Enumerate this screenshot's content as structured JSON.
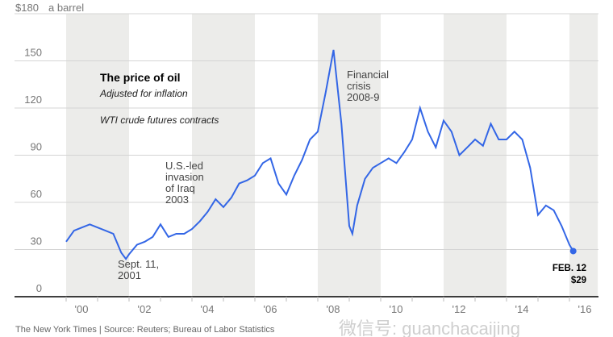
{
  "chart_data": {
    "type": "line",
    "title": "The price of oil",
    "subtitle": "Adjusted for inflation",
    "note": "WTI crude futures contracts",
    "ylabel_suffix": "a barrel",
    "ylim": [
      0,
      180
    ],
    "yticks": [
      {
        "v": 0,
        "label": "0"
      },
      {
        "v": 30,
        "label": "30"
      },
      {
        "v": 60,
        "label": "60"
      },
      {
        "v": 90,
        "label": "90"
      },
      {
        "v": 120,
        "label": "120"
      },
      {
        "v": 150,
        "label": "150"
      },
      {
        "v": 180,
        "label": "$180"
      }
    ],
    "xlim": [
      2000,
      2016.9
    ],
    "xticks": [
      {
        "v": 2000,
        "label": "'00"
      },
      {
        "v": 2002,
        "label": "'02"
      },
      {
        "v": 2004,
        "label": "'04"
      },
      {
        "v": 2006,
        "label": "'06"
      },
      {
        "v": 2008,
        "label": "'08"
      },
      {
        "v": 2010,
        "label": "'10"
      },
      {
        "v": 2012,
        "label": "'12"
      },
      {
        "v": 2014,
        "label": "'14"
      },
      {
        "v": 2016,
        "label": "'16"
      }
    ],
    "series": [
      {
        "name": "WTI crude (inflation adjusted)",
        "color": "#3366e6",
        "x": [
          2000.0,
          2000.25,
          2000.5,
          2000.75,
          2001.0,
          2001.25,
          2001.5,
          2001.75,
          2001.9,
          2002.0,
          2002.25,
          2002.5,
          2002.75,
          2003.0,
          2003.25,
          2003.5,
          2003.75,
          2004.0,
          2004.25,
          2004.5,
          2004.75,
          2005.0,
          2005.25,
          2005.5,
          2005.75,
          2006.0,
          2006.25,
          2006.5,
          2006.75,
          2007.0,
          2007.25,
          2007.5,
          2007.75,
          2008.0,
          2008.25,
          2008.5,
          2008.75,
          2009.0,
          2009.1,
          2009.25,
          2009.5,
          2009.75,
          2010.0,
          2010.25,
          2010.5,
          2010.75,
          2011.0,
          2011.25,
          2011.5,
          2011.75,
          2012.0,
          2012.25,
          2012.5,
          2012.75,
          2013.0,
          2013.25,
          2013.5,
          2013.75,
          2014.0,
          2014.25,
          2014.5,
          2014.75,
          2015.0,
          2015.25,
          2015.5,
          2015.75,
          2016.0,
          2016.12
        ],
        "y": [
          35,
          42,
          44,
          46,
          44,
          42,
          40,
          28,
          24,
          27,
          33,
          35,
          38,
          46,
          38,
          40,
          40,
          43,
          48,
          54,
          62,
          57,
          63,
          72,
          74,
          77,
          85,
          88,
          72,
          65,
          77,
          87,
          100,
          105,
          130,
          157,
          110,
          45,
          40,
          58,
          75,
          82,
          85,
          88,
          85,
          92,
          100,
          120,
          105,
          95,
          112,
          105,
          90,
          95,
          100,
          96,
          110,
          100,
          100,
          105,
          100,
          82,
          52,
          58,
          55,
          45,
          33,
          29
        ]
      }
    ],
    "shaded_bands": [
      [
        2000,
        2002
      ],
      [
        2004,
        2006
      ],
      [
        2008,
        2010
      ],
      [
        2012,
        2014
      ],
      [
        2016,
        2016.9
      ]
    ],
    "annotations": [
      {
        "x": 2001.7,
        "lines": [
          "Sept. 11,",
          "2001"
        ]
      },
      {
        "x": 2003,
        "lines": [
          "U.S.-led",
          "invasion",
          "of Iraq",
          "2003"
        ]
      },
      {
        "x": 2008.6,
        "lines": [
          "Financial",
          "crisis",
          "2008-9"
        ]
      }
    ],
    "end_label": {
      "date": "FEB. 12",
      "value": "$29"
    }
  },
  "source": "The New York Times | Source: Reuters; Bureau of Labor Statistics",
  "watermark": "微信号: guanchacaijing"
}
